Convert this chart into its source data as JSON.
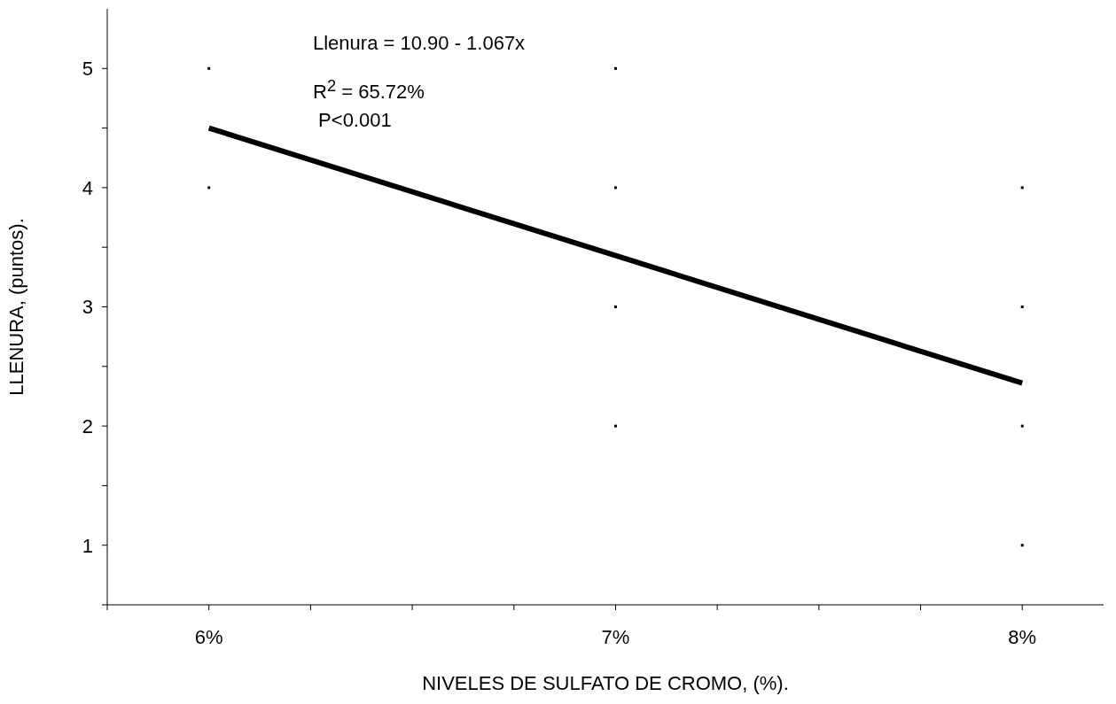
{
  "chart_data": {
    "type": "scatter",
    "xlabel": "NIVELES DE SULFATO DE CROMO, (%).",
    "ylabel": "LLENURA, (puntos).",
    "annotations": [
      "Llenura = 10.90 - 1.067x",
      "R$^{2}$ = 65.72%",
      " P<0.001"
    ],
    "series": [
      {
        "color": "#000000",
        "x": [
          6,
          6,
          7,
          7,
          7,
          7,
          8,
          8,
          8,
          8
        ],
        "values": [
          5,
          4,
          5,
          4,
          3,
          2,
          4,
          3,
          2,
          1
        ]
      },
      {
        "type": "line",
        "marker": "none",
        "color": "#000000",
        "x": [
          6,
          8
        ],
        "values": [
          4.5,
          2.36
        ]
      }
    ],
    "xlim": [
      5.75,
      8.2
    ],
    "xticks": [
      {
        "value": 5.75,
        "label": null
      },
      {
        "value": 6,
        "label": "6%"
      },
      {
        "value": 6.25,
        "label": null
      },
      {
        "value": 6.5,
        "label": null
      },
      {
        "value": 6.75,
        "label": null
      },
      {
        "value": 7,
        "label": "7%"
      },
      {
        "value": 7.25,
        "label": null
      },
      {
        "value": 7.5,
        "label": null
      },
      {
        "value": 7.75,
        "label": null
      },
      {
        "value": 8,
        "label": "8%"
      }
    ],
    "ylim": [
      0.5,
      5.5
    ],
    "yticks": [
      {
        "value": 0.5,
        "label": null
      },
      1,
      {
        "value": 1.5,
        "label": null
      },
      2,
      {
        "value": 2.5,
        "label": null
      },
      3,
      {
        "value": 3.5,
        "label": null
      },
      4,
      {
        "value": 4.5,
        "label": null
      },
      5
    ],
    "marker": "square",
    "grid": false,
    "legend": false
  }
}
